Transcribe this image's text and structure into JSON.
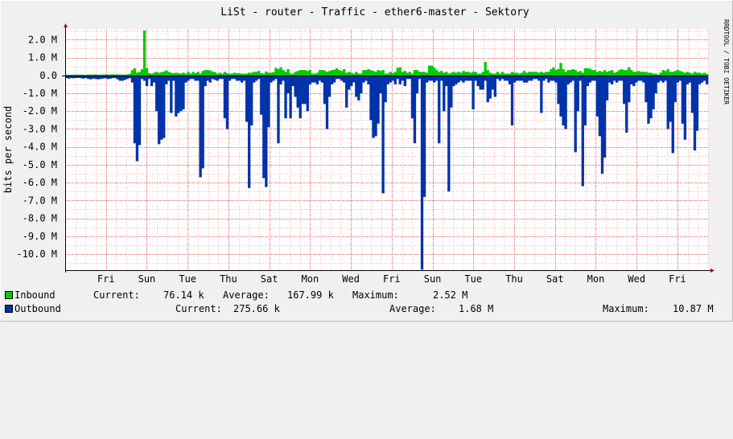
{
  "window": {
    "title": "LiSt - router - Traffic - ether6-master - Sektory",
    "watermark": "RRDTOOL / TOBI OETIKER"
  },
  "chart_data": {
    "type": "area",
    "title": "LiSt - router - Traffic - ether6-master - Sektory",
    "ylabel": "bits per second",
    "ylim": [
      -10.9,
      2.6
    ],
    "ytick_values": [
      2,
      1,
      0,
      -1,
      -2,
      -3,
      -4,
      -5,
      -6,
      -7,
      -8,
      -9,
      -10
    ],
    "ytick_labels": [
      "2.0 M",
      "1.0 M",
      "0.0",
      "-1.0 M",
      "-2.0 M",
      "-3.0 M",
      "-4.0 M",
      "-5.0 M",
      "-6.0 M",
      "-7.0 M",
      "-8.0 M",
      "-9.0 M",
      "-10.0 M"
    ],
    "xlabels": [
      "Fri",
      "Sun",
      "Tue",
      "Thu",
      "Sat",
      "Mon",
      "Wed",
      "Fri",
      "Sun",
      "Tue",
      "Thu",
      "Sat",
      "Mon",
      "Wed",
      "Fri"
    ],
    "xlabel_days": [
      1,
      2,
      3,
      4,
      5,
      6,
      7,
      8,
      9,
      10,
      11,
      12,
      13,
      14,
      15
    ],
    "x_range_days": [
      0,
      15.75
    ],
    "grid": true,
    "series": [
      {
        "name": "Inbound",
        "color": "#00cc00",
        "values": [
          0.04,
          0.04,
          0.04,
          0.04,
          0.05,
          0.04,
          0.05,
          0.04,
          0.04,
          0.05,
          0.05,
          0.05,
          0.06,
          0.04,
          0.05,
          0.05,
          0.06,
          0.05,
          0.05,
          0.06,
          0.05,
          0.06,
          0.05,
          0.05,
          0.05,
          0.06,
          0.09,
          0.3,
          0.4,
          0.15,
          0.2,
          0.35,
          2.52,
          0.4,
          0.12,
          0.1,
          0.15,
          0.2,
          0.15,
          0.18,
          0.22,
          0.28,
          0.2,
          0.15,
          0.12,
          0.15,
          0.12,
          0.1,
          0.15,
          0.1,
          0.2,
          0.1,
          0.2,
          0.12,
          0.2,
          0.1,
          0.25,
          0.3,
          0.3,
          0.28,
          0.22,
          0.18,
          0.1,
          0.15,
          0.1,
          0.2,
          0.12,
          0.1,
          0.1,
          0.15,
          0.12,
          0.12,
          0.1,
          0.1,
          0.1,
          0.15,
          0.15,
          0.2,
          0.2,
          0.25,
          0.12,
          0.1,
          0.22,
          0.15,
          0.15,
          0.18,
          0.42,
          0.35,
          0.45,
          0.3,
          0.2,
          0.35,
          0.1,
          0.1,
          0.2,
          0.25,
          0.3,
          0.3,
          0.3,
          0.25,
          0.3,
          0.1,
          0.1,
          0.15,
          0.3,
          0.3,
          0.28,
          0.2,
          0.25,
          0.3,
          0.32,
          0.4,
          0.3,
          0.25,
          0.35,
          0.15,
          0.2,
          0.15,
          0.1,
          0.2,
          0.1,
          0.1,
          0.3,
          0.3,
          0.35,
          0.3,
          0.25,
          0.2,
          0.3,
          0.25,
          0.3,
          0.1,
          0.1,
          0.2,
          0.12,
          0.2,
          0.42,
          0.45,
          0.2,
          0.25,
          0.15,
          0.2,
          0.1,
          0.3,
          0.3,
          0.2,
          0.2,
          0.2,
          0.15,
          0.55,
          0.55,
          0.45,
          0.3,
          0.2,
          0.25,
          0.15,
          0.2,
          0.1,
          0.15,
          0.2,
          0.15,
          0.2,
          0.15,
          0.25,
          0.2,
          0.2,
          0.15,
          0.2,
          0.2,
          0.1,
          0.1,
          0.2,
          0.75,
          0.3,
          0.15,
          0.1,
          0.1,
          0.2,
          0.1,
          0.2,
          0.1,
          0.1,
          0.1,
          0.2,
          0.15,
          0.15,
          0.1,
          0.15,
          0.25,
          0.15,
          0.2,
          0.2,
          0.2,
          0.2,
          0.15,
          0.2,
          0.15,
          0.2,
          0.2,
          0.35,
          0.45,
          0.3,
          0.35,
          0.7,
          0.35,
          0.2,
          0.3,
          0.3,
          0.35,
          0.3,
          0.2,
          0.25,
          0.15,
          0.4,
          0.4,
          0.38,
          0.3,
          0.3,
          0.2,
          0.25,
          0.2,
          0.3,
          0.2,
          0.25,
          0.3,
          0.15,
          0.2,
          0.3,
          0.35,
          0.3,
          0.3,
          0.45,
          0.3,
          0.2,
          0.2,
          0.25,
          0.2,
          0.2,
          0.2,
          0.15,
          0.15,
          0.1,
          0.1,
          0.05,
          0.15,
          0.3,
          0.25,
          0.35,
          0.2,
          0.2,
          0.25,
          0.3,
          0.25,
          0.2,
          0.15,
          0.2,
          0.15,
          0.1,
          0.2,
          0.15,
          0.15,
          0.1,
          0.15,
          0.08
        ]
      },
      {
        "name": "Outbound",
        "color": "#0033aa",
        "values": [
          -0.15,
          -0.18,
          -0.15,
          -0.16,
          -0.15,
          -0.14,
          -0.16,
          -0.18,
          -0.15,
          -0.2,
          -0.22,
          -0.18,
          -0.2,
          -0.22,
          -0.2,
          -0.18,
          -0.16,
          -0.2,
          -0.18,
          -0.15,
          -0.15,
          -0.22,
          -0.3,
          -0.3,
          -0.25,
          -0.2,
          -0.15,
          -0.4,
          -3.8,
          -4.8,
          -3.9,
          -0.2,
          -0.3,
          -0.6,
          -0.2,
          -0.6,
          -0.4,
          -2.0,
          -3.85,
          -3.6,
          -3.5,
          -0.5,
          -0.3,
          -2.1,
          -0.3,
          -2.3,
          -2.1,
          -2.0,
          -1.9,
          -0.4,
          -0.3,
          -0.2,
          -0.2,
          -0.3,
          -0.3,
          -5.7,
          -5.2,
          -0.6,
          -0.3,
          -0.4,
          -0.2,
          -0.25,
          -0.3,
          -0.2,
          -0.2,
          -2.4,
          -3.0,
          -0.3,
          -0.2,
          -0.2,
          -0.3,
          -0.3,
          -0.4,
          -0.3,
          -2.6,
          -6.3,
          -2.8,
          -0.4,
          -0.3,
          -0.2,
          -2.2,
          -5.75,
          -6.25,
          -2.9,
          -0.4,
          -0.3,
          -0.2,
          -3.8,
          -0.5,
          -0.3,
          -2.4,
          -1.0,
          -2.4,
          -0.6,
          -1.2,
          -1.8,
          -2.4,
          -1.6,
          -1.6,
          -2.0,
          -0.5,
          -0.4,
          -0.4,
          -0.5,
          -0.3,
          -0.4,
          -1.6,
          -3.0,
          -1.2,
          -0.5,
          -0.4,
          -0.2,
          -0.2,
          -0.3,
          -0.4,
          -1.8,
          -0.8,
          -0.6,
          -0.4,
          -1.2,
          -1.4,
          -1.0,
          -0.4,
          -0.3,
          -0.5,
          -2.5,
          -3.5,
          -3.4,
          -2.7,
          -1.0,
          -6.6,
          -1.5,
          -0.5,
          -0.4,
          -0.3,
          -0.5,
          -0.2,
          -0.5,
          -0.3,
          -0.6,
          -0.2,
          -0.2,
          -2.4,
          -3.8,
          -1.0,
          -0.2,
          -10.87,
          -6.8,
          -0.4,
          -0.3,
          -0.3,
          -0.4,
          -0.3,
          -3.8,
          -0.3,
          -2.0,
          -0.6,
          -6.5,
          -1.8,
          -0.6,
          -0.5,
          -0.4,
          -0.3,
          -0.4,
          -0.3,
          -0.3,
          -0.3,
          -1.9,
          -0.3,
          -0.6,
          -0.8,
          -0.8,
          -0.3,
          -1.5,
          -1.3,
          -0.8,
          -1.2,
          -0.2,
          -0.3,
          -0.2,
          -0.3,
          -0.3,
          -0.5,
          -2.8,
          -0.4,
          -0.3,
          -0.3,
          -0.3,
          -0.4,
          -0.4,
          -0.3,
          -0.3,
          -0.2,
          -0.2,
          -0.3,
          -2.1,
          -0.3,
          -0.2,
          -0.4,
          -0.3,
          -0.3,
          -0.4,
          -1.6,
          -2.3,
          -2.8,
          -3.0,
          -0.5,
          -0.4,
          -0.3,
          -4.3,
          -2.0,
          -0.3,
          -6.2,
          -2.8,
          -0.6,
          -0.4,
          -0.3,
          -0.3,
          -2.3,
          -3.4,
          -5.5,
          -4.6,
          -1.4,
          -0.4,
          -0.5,
          -0.3,
          -0.4,
          -0.3,
          -0.3,
          -1.6,
          -3.2,
          -1.5,
          -0.5,
          -0.6,
          -0.4,
          -0.3,
          -0.3,
          -0.4,
          -1.5,
          -2.7,
          -2.4,
          -1.9,
          -1.0,
          -0.4,
          -0.3,
          -0.4,
          -0.3,
          -3.0,
          -2.6,
          -4.35,
          -1.5,
          -0.4,
          -0.3,
          -2.7,
          -3.6,
          -0.5,
          -0.4,
          -2.1,
          -4.2,
          -3.1,
          -0.5,
          -0.4,
          -0.3,
          -0.5,
          -0.6,
          -0.3,
          -0.5,
          -2.3,
          -0.4,
          -0.3,
          -0.3,
          -1.4,
          -3.1,
          -2.5,
          -1.7,
          -1.5,
          -0.4
        ]
      }
    ]
  },
  "legend": {
    "inbound": {
      "label": "Inbound",
      "color": "#00cc00",
      "current_label": "Current:",
      "current_value": "76.14 k",
      "average_label": "Average:",
      "average_value": "167.99 k",
      "maximum_label": "Maximum:",
      "maximum_value": "2.52 M"
    },
    "outbound": {
      "label": "Outbound",
      "color": "#0033aa",
      "current_label": "Current:",
      "current_value": "275.66 k",
      "average_label": "Average:",
      "average_value": "1.68 M",
      "maximum_label": "Maximum:",
      "maximum_value": "10.87 M"
    }
  }
}
